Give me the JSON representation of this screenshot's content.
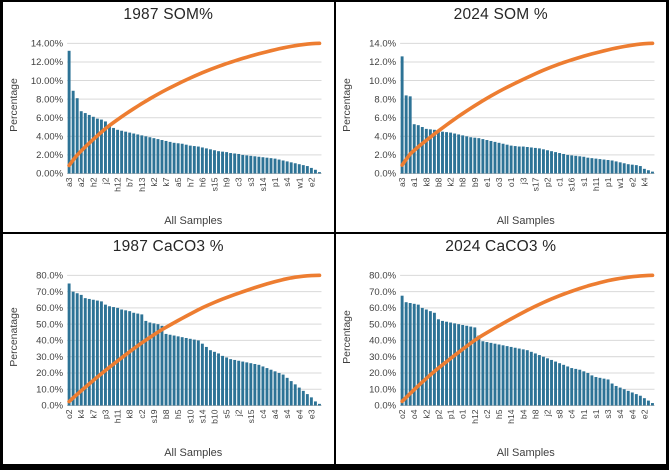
{
  "board": {
    "border_color": "#000000",
    "background": "#ffffff"
  },
  "chart_data": [
    {
      "type": "bar",
      "title": "1987 SOM%",
      "xlabel": "All Samples",
      "ylabel": "Percentage",
      "ylim": [
        0,
        14
      ],
      "y_tick_labels": [
        "0.00%",
        "2.00%",
        "4.00%",
        "6.00%",
        "8.00%",
        "10.00%",
        "12.00%",
        "14.00%"
      ],
      "grid": "horizontal",
      "bar_color": "#2d7396",
      "line_color": "#ed7d31",
      "overlay_line": "cumulative share of total, scaled to y-axis max",
      "categories_visible": [
        "a3",
        "a2",
        "h2",
        "j2",
        "h12",
        "b7",
        "h13",
        "k2",
        "k7",
        "a5",
        "h7",
        "h6",
        "s15",
        "h9",
        "c3",
        "s3",
        "s14",
        "p1",
        "s4",
        "w1",
        "e2"
      ],
      "category_label_every_n_bars": 3,
      "values": [
        13.2,
        8.9,
        8.1,
        6.7,
        6.5,
        6.3,
        6.1,
        5.9,
        5.8,
        5.6,
        5.2,
        4.9,
        4.7,
        4.6,
        4.5,
        4.4,
        4.3,
        4.2,
        4.1,
        4.0,
        3.9,
        3.8,
        3.7,
        3.6,
        3.5,
        3.4,
        3.3,
        3.25,
        3.2,
        3.1,
        3.0,
        2.95,
        2.9,
        2.8,
        2.7,
        2.6,
        2.5,
        2.4,
        2.35,
        2.3,
        2.2,
        2.15,
        2.1,
        2.0,
        1.95,
        1.9,
        1.85,
        1.8,
        1.75,
        1.7,
        1.65,
        1.6,
        1.5,
        1.4,
        1.3,
        1.2,
        1.1,
        1.0,
        0.9,
        0.8,
        0.6,
        0.4,
        0.15
      ]
    },
    {
      "type": "bar",
      "title": "2024 SOM %",
      "xlabel": "All Samples",
      "ylabel": "Percentage",
      "ylim": [
        0,
        14
      ],
      "y_tick_labels": [
        "0.0%",
        "2.0%",
        "4.0%",
        "6.0%",
        "8.0%",
        "10.0%",
        "12.0%",
        "14.0%"
      ],
      "grid": "horizontal",
      "bar_color": "#2d7396",
      "line_color": "#ed7d31",
      "overlay_line": "cumulative share of total, scaled to y-axis max",
      "categories_visible": [
        "a3",
        "a1",
        "k8",
        "b8",
        "k2",
        "h8",
        "b9",
        "e1",
        "o3",
        "o1",
        "j3",
        "s17",
        "p2",
        "c1",
        "s16",
        "s1",
        "h11",
        "p1",
        "w1",
        "e2",
        "k4"
      ],
      "category_label_every_n_bars": 3,
      "values": [
        12.6,
        8.4,
        8.3,
        5.3,
        5.2,
        5.0,
        4.8,
        4.75,
        4.7,
        4.6,
        4.5,
        4.45,
        4.4,
        4.3,
        4.2,
        4.1,
        4.0,
        3.9,
        3.85,
        3.8,
        3.7,
        3.6,
        3.5,
        3.4,
        3.3,
        3.2,
        3.1,
        3.0,
        2.95,
        2.9,
        2.9,
        2.85,
        2.8,
        2.75,
        2.7,
        2.6,
        2.5,
        2.4,
        2.3,
        2.2,
        2.1,
        2.0,
        1.95,
        1.9,
        1.85,
        1.8,
        1.7,
        1.65,
        1.6,
        1.55,
        1.5,
        1.45,
        1.4,
        1.3,
        1.2,
        1.1,
        1.0,
        0.95,
        0.9,
        0.8,
        0.5,
        0.35,
        0.2
      ]
    },
    {
      "type": "bar",
      "title": "1987 CaCO3 %",
      "xlabel": "All Samples",
      "ylabel": "Percenatage",
      "ylim": [
        0,
        80
      ],
      "y_tick_labels": [
        "0.0%",
        "10.0%",
        "20.0%",
        "30.0%",
        "40.0%",
        "50.0%",
        "60.0%",
        "70.0%",
        "80.0%"
      ],
      "grid": "horizontal",
      "bar_color": "#2d7396",
      "line_color": "#ed7d31",
      "overlay_line": "cumulative share of total, scaled to y-axis max",
      "categories_visible": [
        "o2",
        "k4",
        "k7",
        "p3",
        "h11",
        "k8",
        "c2",
        "s19",
        "b8",
        "h5",
        "s10",
        "s14",
        "b10",
        "s5",
        "j2",
        "s15",
        "c4",
        "a4",
        "s4",
        "e4",
        "e3"
      ],
      "category_label_every_n_bars": 3,
      "values": [
        75,
        70,
        69,
        68,
        66,
        65.5,
        65,
        64.5,
        64,
        62,
        61,
        60.5,
        60,
        59,
        58.5,
        58,
        57,
        56.5,
        56,
        52,
        51,
        50.5,
        50,
        49,
        44,
        43.5,
        43,
        42.5,
        42,
        41.5,
        41,
        40.5,
        40,
        38,
        36,
        34,
        33,
        32,
        30.5,
        29.5,
        28.5,
        28,
        27.5,
        27,
        26.5,
        26,
        25.5,
        25,
        24,
        23,
        22,
        21,
        20,
        19,
        17,
        15,
        13,
        11,
        9,
        7,
        5,
        2.5,
        1
      ]
    },
    {
      "type": "bar",
      "title": "2024 CaCO3 %",
      "xlabel": "All Samples",
      "ylabel": "Percentage",
      "ylim": [
        0,
        80
      ],
      "y_tick_labels": [
        "0.0%",
        "10.0%",
        "20.0%",
        "30.0%",
        "40.0%",
        "50.0%",
        "60.0%",
        "70.0%",
        "80.0%"
      ],
      "grid": "horizontal",
      "bar_color": "#2d7396",
      "line_color": "#ed7d31",
      "overlay_line": "cumulative share of total, scaled to y-axis max",
      "categories_visible": [
        "o2",
        "o4",
        "k2",
        "p2",
        "p1",
        "o1",
        "h12",
        "c2",
        "h5",
        "h14",
        "b4",
        "h8",
        "j2",
        "s8",
        "c4",
        "h1",
        "s1",
        "s3",
        "s4",
        "e4",
        "e2"
      ],
      "category_label_every_n_bars": 3,
      "values": [
        67.5,
        63.5,
        63,
        62.5,
        62,
        60,
        59,
        58,
        57,
        53,
        52,
        51.5,
        51,
        50.5,
        50,
        49.5,
        49,
        48.5,
        48,
        43,
        39.5,
        39,
        38.5,
        38,
        37.5,
        37,
        36.5,
        36,
        35.5,
        35,
        34.5,
        34,
        33,
        32,
        31,
        30,
        29,
        28,
        27,
        26,
        25,
        24,
        23,
        22.5,
        22,
        21,
        20,
        18.5,
        17.5,
        17,
        16.5,
        16,
        13.5,
        12,
        11,
        10,
        9,
        8,
        7,
        6,
        4.5,
        3,
        1.5
      ]
    }
  ]
}
